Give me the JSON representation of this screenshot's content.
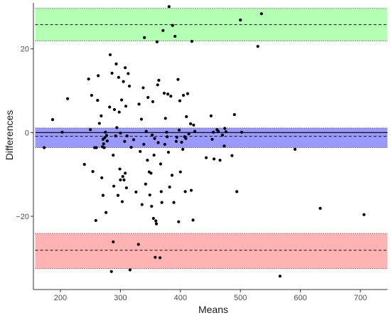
{
  "chart_data": {
    "type": "scatter",
    "title": "",
    "xlabel": "Means",
    "ylabel": "Differences",
    "xlim": [
      155,
      745
    ],
    "ylim": [
      -37.5,
      31
    ],
    "x_ticks": [
      200,
      300,
      400,
      500,
      600,
      700
    ],
    "y_ticks": [
      -20,
      0,
      20
    ],
    "grid": false,
    "bands": [
      {
        "name": "upper limit of agreement",
        "center": 25.8,
        "ci": [
          21.9,
          29.7
        ],
        "color": "#b3ffb3"
      },
      {
        "name": "mean difference",
        "center": -0.9,
        "ci": [
          -3.6,
          1.1
        ],
        "color": "#9999ff"
      },
      {
        "name": "lower limit of agreement",
        "center": -28.1,
        "ci": [
          -32.5,
          -24.1
        ],
        "color": "#ffb3b3"
      }
    ],
    "reference_line": 0,
    "points": [
      [
        173,
        -3.6
      ],
      [
        187,
        3.1
      ],
      [
        203,
        0.1
      ],
      [
        212,
        8.1
      ],
      [
        240,
        -7.6
      ],
      [
        247,
        12.8
      ],
      [
        250,
        0.7
      ],
      [
        252,
        8.9
      ],
      [
        254,
        -9.3
      ],
      [
        257,
        -3.6
      ],
      [
        259,
        -21.0
      ],
      [
        260,
        -3.6
      ],
      [
        262,
        7.7
      ],
      [
        263,
        13.6
      ],
      [
        265,
        2.2
      ],
      [
        268,
        4.0
      ],
      [
        269,
        -10.8
      ],
      [
        270,
        -3.4
      ],
      [
        271,
        -15.0
      ],
      [
        271,
        -1.6
      ],
      [
        272,
        -2.7
      ],
      [
        273,
        -3.6
      ],
      [
        274,
        -1.2
      ],
      [
        275,
        0.1
      ],
      [
        276,
        -19.1
      ],
      [
        277,
        -0.7
      ],
      [
        278,
        -2.0
      ],
      [
        282,
        6.1
      ],
      [
        283,
        18.6
      ],
      [
        285,
        -33.2
      ],
      [
        286,
        14.2
      ],
      [
        288,
        -26.1
      ],
      [
        288,
        -5.4
      ],
      [
        289,
        -12.8
      ],
      [
        290,
        5.5
      ],
      [
        292,
        -0.8
      ],
      [
        293,
        16.4
      ],
      [
        294,
        1.2
      ],
      [
        296,
        -15.0
      ],
      [
        297,
        13.2
      ],
      [
        298,
        4.9
      ],
      [
        299,
        -8.7
      ],
      [
        300,
        -11.3
      ],
      [
        300,
        -0.1
      ],
      [
        302,
        7.8
      ],
      [
        303,
        -16.5
      ],
      [
        304,
        -10.5
      ],
      [
        305,
        12.2
      ],
      [
        306,
        -11.3
      ],
      [
        307,
        -2.1
      ],
      [
        308,
        -9.7
      ],
      [
        308,
        15.5
      ],
      [
        309,
        6.3
      ],
      [
        310,
        -13.2
      ],
      [
        311,
        -0.8
      ],
      [
        313,
        14.1
      ],
      [
        315,
        11.1
      ],
      [
        316,
        -32.8
      ],
      [
        318,
        -3.5
      ],
      [
        322,
        -1.7
      ],
      [
        326,
        -14.2
      ],
      [
        330,
        -26.7
      ],
      [
        331,
        6.8
      ],
      [
        333,
        -4.5
      ],
      [
        335,
        3.2
      ],
      [
        336,
        -17.2
      ],
      [
        338,
        10.7
      ],
      [
        339,
        -2.8
      ],
      [
        340,
        22.7
      ],
      [
        342,
        -12.3
      ],
      [
        343,
        0.3
      ],
      [
        345,
        -6.6
      ],
      [
        346,
        8.4
      ],
      [
        348,
        -9.4
      ],
      [
        349,
        -14.9
      ],
      [
        351,
        -9.7
      ],
      [
        352,
        -17.6
      ],
      [
        353,
        -0.6
      ],
      [
        354,
        7.4
      ],
      [
        355,
        -20.5
      ],
      [
        356,
        -5.4
      ],
      [
        357,
        -1.4
      ],
      [
        358,
        -29.8
      ],
      [
        359,
        -21.1
      ],
      [
        360,
        -21.8
      ],
      [
        361,
        21.7
      ],
      [
        362,
        11.4
      ],
      [
        363,
        -2.4
      ],
      [
        364,
        12.5
      ],
      [
        366,
        -29.9
      ],
      [
        367,
        -7.5
      ],
      [
        368,
        -14.1
      ],
      [
        369,
        -16.7
      ],
      [
        371,
        24.4
      ],
      [
        373,
        9.4
      ],
      [
        374,
        -2.8
      ],
      [
        375,
        3.4
      ],
      [
        377,
        0.1
      ],
      [
        378,
        -1.0
      ],
      [
        379,
        9.2
      ],
      [
        380,
        -4.7
      ],
      [
        381,
        30.1
      ],
      [
        382,
        -13.0
      ],
      [
        384,
        8.7
      ],
      [
        386,
        -10.2
      ],
      [
        387,
        25.6
      ],
      [
        389,
        -16.7
      ],
      [
        391,
        23.0
      ],
      [
        393,
        -2.1
      ],
      [
        394,
        -1.1
      ],
      [
        396,
        12.7
      ],
      [
        397,
        -21.3
      ],
      [
        398,
        0.6
      ],
      [
        399,
        7.6
      ],
      [
        400,
        -9.4
      ],
      [
        402,
        -2.3
      ],
      [
        404,
        -4.0
      ],
      [
        405,
        8.9
      ],
      [
        407,
        -1.0
      ],
      [
        408,
        -14.1
      ],
      [
        409,
        -1.4
      ],
      [
        410,
        3.8
      ],
      [
        412,
        9.3
      ],
      [
        414,
        -0.3
      ],
      [
        417,
        2.1
      ],
      [
        418,
        -13.8
      ],
      [
        419,
        21.8
      ],
      [
        421,
        -20.9
      ],
      [
        422,
        1.8
      ],
      [
        424,
        0.3
      ],
      [
        443,
        -6.0
      ],
      [
        451,
        4.0
      ],
      [
        453,
        -1.6
      ],
      [
        455,
        0.1
      ],
      [
        456,
        -6.3
      ],
      [
        461,
        0.7
      ],
      [
        463,
        0.3
      ],
      [
        466,
        -6.6
      ],
      [
        470,
        -0.6
      ],
      [
        473,
        -3.2
      ],
      [
        474,
        1.0
      ],
      [
        476,
        0.2
      ],
      [
        486,
        -5.5
      ],
      [
        490,
        4.3
      ],
      [
        494,
        -14.1
      ],
      [
        500,
        26.9
      ],
      [
        502,
        0.1
      ],
      [
        529,
        20.6
      ],
      [
        535,
        28.4
      ],
      [
        566,
        -34.3
      ],
      [
        591,
        -4.0
      ],
      [
        633,
        -18.1
      ],
      [
        706,
        -19.6
      ]
    ]
  }
}
